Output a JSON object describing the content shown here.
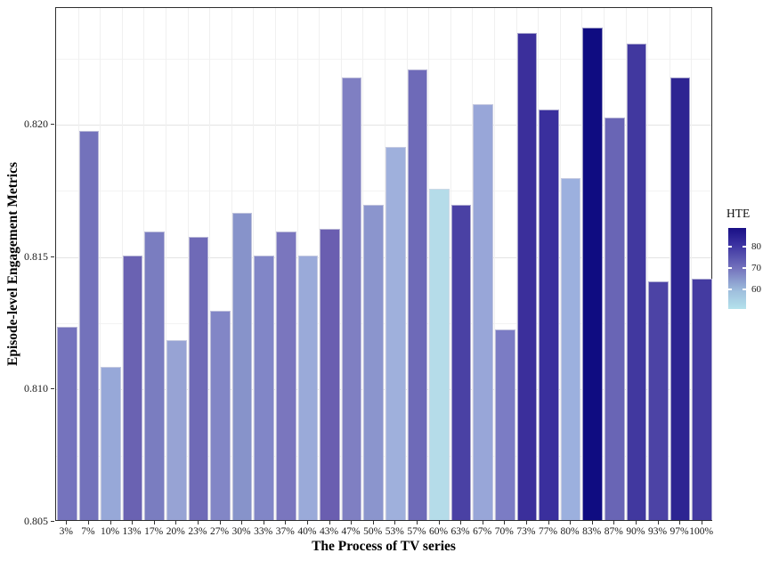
{
  "chart_data": {
    "type": "bar",
    "title": "",
    "xlabel": "The Process of TV series",
    "ylabel": "Episode-level Engagement Metrics",
    "ylim": [
      0.805,
      0.8244
    ],
    "ytick_labels": [
      "0.805",
      "0.810",
      "0.815",
      "0.820"
    ],
    "ytick_values": [
      0.805,
      0.81,
      0.815,
      0.82
    ],
    "minor_ytick_values": [
      0.8075,
      0.8125,
      0.8175,
      0.8225
    ],
    "grid": true,
    "categories": [
      "3%",
      "7%",
      "10%",
      "13%",
      "17%",
      "20%",
      "23%",
      "27%",
      "30%",
      "33%",
      "37%",
      "40%",
      "43%",
      "47%",
      "50%",
      "53%",
      "57%",
      "60%",
      "63%",
      "67%",
      "70%",
      "73%",
      "77%",
      "80%",
      "83%",
      "87%",
      "90%",
      "93%",
      "97%",
      "100%"
    ],
    "series": [
      {
        "name": "Episode-level Engagement Metrics",
        "values": [
          0.8123,
          0.8197,
          0.8108,
          0.815,
          0.8159,
          0.8118,
          0.8157,
          0.8129,
          0.8166,
          0.815,
          0.8159,
          0.815,
          0.816,
          0.8217,
          0.8169,
          0.8191,
          0.822,
          0.8175,
          0.8169,
          0.8207,
          0.8122,
          0.8234,
          0.8205,
          0.8179,
          0.8236,
          0.8202,
          0.823,
          0.814,
          0.8217,
          0.8141
        ],
        "hte": [
          70,
          70,
          62,
          72,
          69,
          62,
          71,
          67,
          66,
          67,
          69,
          61,
          74,
          68,
          65,
          61,
          71,
          52,
          78,
          62,
          68,
          81,
          81,
          61,
          88,
          72,
          79,
          77,
          82,
          78
        ],
        "bar_colors": [
          "#7573bd",
          "#7372bb",
          "#97a8d8",
          "#6a62b2",
          "#7a7dc0",
          "#97a3d4",
          "#6f6ab7",
          "#8286c6",
          "#8793ca",
          "#8186c7",
          "#7a76be",
          "#9aaad9",
          "#6a5eb0",
          "#7f7fc2",
          "#8b95cd",
          "#9fb0dc",
          "#6e6ab8",
          "#b5dce9",
          "#4a41a4",
          "#98a6d8",
          "#7b7cc4",
          "#3b2f9b",
          "#3a2f9d",
          "#9cb0de",
          "#0f0c81",
          "#6965b5",
          "#41389f",
          "#4c43a5",
          "#2d2492",
          "#443ba1"
        ]
      }
    ],
    "legend": {
      "title": "HTE",
      "position": "right",
      "tick_labels": [
        "80",
        "70",
        "60"
      ],
      "tick_values": [
        80,
        70,
        60
      ],
      "value_range": [
        51,
        88.5
      ],
      "gradient_stops": [
        "#190f86",
        "#3a31a0",
        "#7473bd",
        "#9fbfdd",
        "#b4e2ec"
      ],
      "gradient_stop_pcts": [
        0,
        20,
        50,
        78,
        100
      ]
    }
  }
}
